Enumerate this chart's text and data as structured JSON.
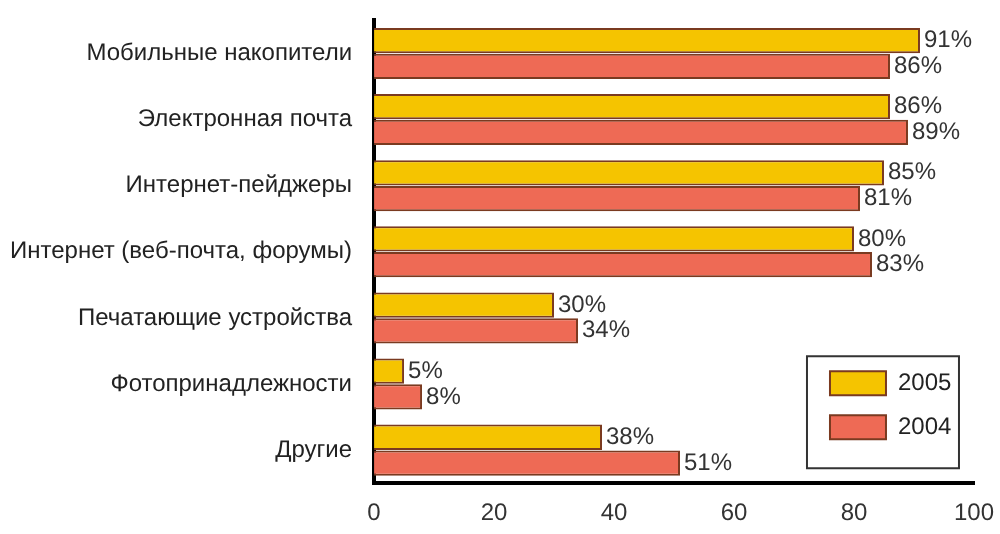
{
  "chart_data": {
    "type": "bar",
    "orientation": "horizontal",
    "categories": [
      "Мобильные накопители",
      "Электронная почта",
      "Интернет-пейджеры",
      "Интернет (веб-почта, форумы)",
      "Печатающие устройства",
      "Фотопринадлежности",
      "Другие"
    ],
    "series": [
      {
        "name": "2005",
        "color": "#f5c400",
        "values": [
          91,
          86,
          85,
          80,
          30,
          5,
          38
        ],
        "value_labels": [
          "91%",
          "86%",
          "85%",
          "80%",
          "30%",
          "5%",
          "38%"
        ]
      },
      {
        "name": "2004",
        "color": "#ee6a55",
        "values": [
          86,
          89,
          81,
          83,
          34,
          8,
          51
        ],
        "value_labels": [
          "86%",
          "89%",
          "81%",
          "83%",
          "34%",
          "8%",
          "51%"
        ]
      }
    ],
    "xlim": [
      0,
      100
    ],
    "xticks": [
      0,
      20,
      40,
      60,
      80,
      100
    ],
    "grid": false,
    "legend": "bottom right"
  }
}
